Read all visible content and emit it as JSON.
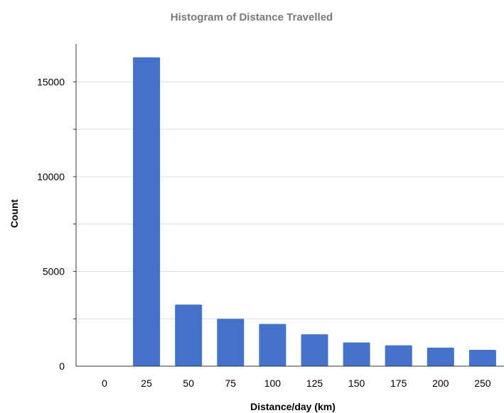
{
  "chart_data": {
    "type": "bar",
    "title": "Histogram of Distance Travelled",
    "xlabel": "Distance/day (km)",
    "ylabel": "Count",
    "categories": [
      "0",
      "25",
      "50",
      "75",
      "100",
      "125",
      "150",
      "175",
      "200",
      "250"
    ],
    "values": [
      0,
      16300,
      3250,
      2500,
      2230,
      1680,
      1250,
      1100,
      980,
      860
    ],
    "ylim": [
      0,
      17000
    ],
    "yticks": [
      0,
      5000,
      10000,
      15000
    ],
    "grid": true,
    "bar_color": "#4472c9"
  }
}
